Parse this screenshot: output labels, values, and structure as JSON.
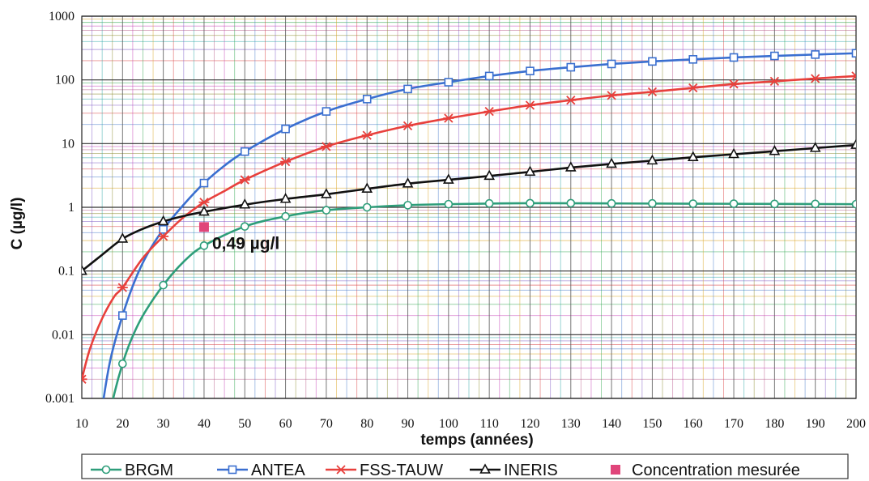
{
  "chart_data": {
    "type": "line",
    "title": "",
    "xlabel": "temps (années)",
    "ylabel": "C (µg/l)",
    "xlim": [
      10,
      200
    ],
    "ylim": [
      0.001,
      1000
    ],
    "yscale": "log",
    "grid": true,
    "legend_position": "bottom",
    "x_ticks": [
      "10",
      "20",
      "30",
      "40",
      "50",
      "60",
      "70",
      "80",
      "90",
      "100",
      "110",
      "120",
      "130",
      "140",
      "150",
      "160",
      "170",
      "180",
      "190",
      "200"
    ],
    "y_ticks": [
      "0.001",
      "0.01",
      "0.1",
      "1",
      "10",
      "100",
      "1000"
    ],
    "series": [
      {
        "name": "BRGM",
        "color": "#2e9e7a",
        "marker": "circle",
        "x": [
          20,
          30,
          40,
          50,
          60,
          70,
          80,
          90,
          100,
          110,
          120,
          130,
          140,
          150,
          160,
          170,
          180,
          190,
          200
        ],
        "y": [
          0.0035,
          0.06,
          0.25,
          0.5,
          0.72,
          0.9,
          1.0,
          1.08,
          1.12,
          1.15,
          1.16,
          1.16,
          1.15,
          1.15,
          1.14,
          1.14,
          1.13,
          1.13,
          1.12
        ],
        "curve_x": [
          14,
          16,
          18,
          20,
          22,
          25,
          30,
          35,
          40,
          50,
          60,
          70,
          80,
          90,
          100,
          120,
          140,
          160,
          180,
          200
        ],
        "curve_y": [
          5e-05,
          0.0003,
          0.0012,
          0.0035,
          0.008,
          0.02,
          0.06,
          0.14,
          0.25,
          0.5,
          0.72,
          0.9,
          1.0,
          1.08,
          1.12,
          1.16,
          1.15,
          1.14,
          1.13,
          1.12
        ]
      },
      {
        "name": "ANTEA",
        "color": "#3a6fd0",
        "marker": "square",
        "x": [
          20,
          30,
          40,
          50,
          60,
          70,
          80,
          90,
          100,
          110,
          120,
          130,
          140,
          150,
          160,
          170,
          180,
          190,
          200
        ],
        "y": [
          0.02,
          0.45,
          2.4,
          7.5,
          17,
          32,
          50,
          72,
          92,
          115,
          138,
          158,
          178,
          195,
          210,
          225,
          238,
          250,
          262
        ],
        "curve_x": [
          13,
          15,
          17,
          20,
          23,
          26,
          30,
          35,
          40,
          45,
          50,
          60,
          70,
          80,
          90,
          100,
          110,
          120,
          130,
          140,
          150,
          160,
          170,
          180,
          190,
          200
        ],
        "curve_y": [
          8e-05,
          0.0007,
          0.004,
          0.02,
          0.07,
          0.18,
          0.45,
          1.1,
          2.4,
          4.5,
          7.5,
          17,
          32,
          50,
          72,
          92,
          115,
          138,
          158,
          178,
          195,
          210,
          225,
          238,
          250,
          262
        ]
      },
      {
        "name": "FSS-TAUW",
        "color": "#e8403c",
        "marker": "star",
        "x": [
          10,
          20,
          30,
          40,
          50,
          60,
          70,
          80,
          90,
          100,
          110,
          120,
          130,
          140,
          150,
          160,
          170,
          180,
          190,
          200
        ],
        "y": [
          0.002,
          0.055,
          0.35,
          1.2,
          2.7,
          5.2,
          9,
          13.5,
          19,
          25,
          32,
          40,
          48,
          57,
          65,
          75,
          86,
          95,
          105,
          115
        ],
        "curve_x": [
          10,
          12,
          15,
          18,
          20,
          25,
          30,
          35,
          40,
          45,
          50,
          60,
          70,
          80,
          90,
          100,
          110,
          120,
          130,
          140,
          150,
          160,
          170,
          180,
          190,
          200
        ],
        "curve_y": [
          0.002,
          0.006,
          0.018,
          0.04,
          0.055,
          0.16,
          0.35,
          0.7,
          1.2,
          1.8,
          2.7,
          5.2,
          9,
          13.5,
          19,
          25,
          32,
          40,
          48,
          57,
          65,
          75,
          86,
          95,
          105,
          115
        ]
      },
      {
        "name": "INERIS",
        "color": "#111111",
        "marker": "triangle",
        "x": [
          10,
          20,
          30,
          40,
          50,
          60,
          70,
          80,
          90,
          100,
          110,
          120,
          130,
          140,
          150,
          160,
          170,
          180,
          190,
          200
        ],
        "y": [
          0.1,
          0.32,
          0.6,
          0.85,
          1.1,
          1.35,
          1.6,
          1.95,
          2.35,
          2.7,
          3.1,
          3.6,
          4.2,
          4.8,
          5.4,
          6.1,
          6.8,
          7.6,
          8.5,
          9.5
        ],
        "curve_x": [
          10,
          15,
          20,
          25,
          30,
          35,
          40,
          50,
          60,
          70,
          80,
          90,
          100,
          110,
          120,
          130,
          140,
          150,
          160,
          170,
          180,
          190,
          200
        ],
        "curve_y": [
          0.1,
          0.18,
          0.32,
          0.46,
          0.6,
          0.73,
          0.85,
          1.1,
          1.35,
          1.6,
          1.95,
          2.35,
          2.7,
          3.1,
          3.6,
          4.2,
          4.8,
          5.4,
          6.1,
          6.8,
          7.6,
          8.5,
          9.5
        ]
      },
      {
        "name": "Concentration mesurée",
        "color": "#e0457a",
        "marker": "square-filled",
        "x": [
          40
        ],
        "y": [
          0.49
        ]
      }
    ],
    "annotations": [
      {
        "text": "0,49 µg/l",
        "x": 40,
        "y": 0.49
      }
    ]
  }
}
